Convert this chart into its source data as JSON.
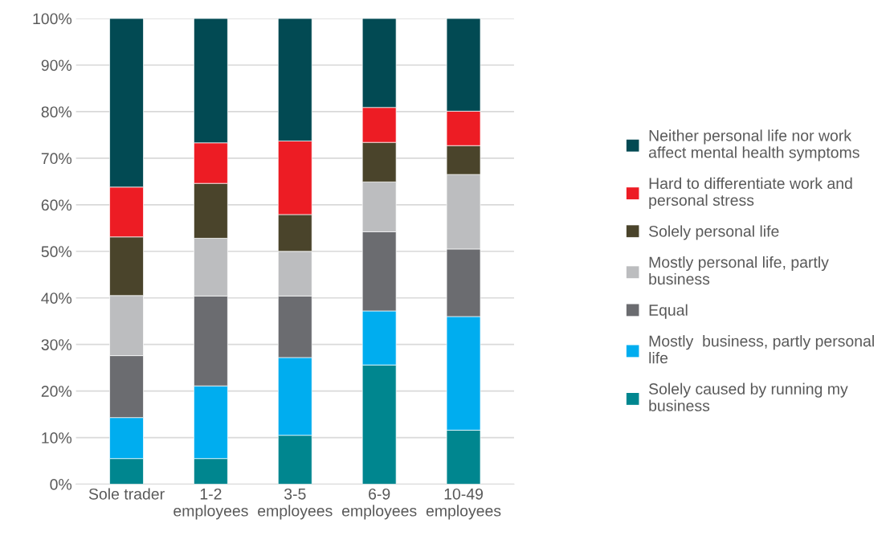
{
  "chart_data": {
    "type": "bar",
    "stacked": true,
    "categories": [
      "Sole trader",
      "1-2\nemployees",
      "3-5\nemployees",
      "6-9\nemployees",
      "10-49\nemployees"
    ],
    "series": [
      {
        "name": "Solely caused by running my\nbusiness",
        "color": "#00868f",
        "values": [
          5.5,
          5.5,
          10.5,
          25.6,
          11.6
        ]
      },
      {
        "name": "Mostly  business, partly personal\nlife",
        "color": "#00adef",
        "values": [
          8.8,
          15.6,
          16.7,
          11.6,
          24.4
        ]
      },
      {
        "name": "Equal",
        "color": "#6b6c70",
        "values": [
          13.3,
          19.3,
          13.2,
          17.0,
          14.5
        ]
      },
      {
        "name": "Mostly personal life, partly\nbusiness",
        "color": "#bcbdbf",
        "values": [
          12.9,
          12.4,
          9.6,
          10.7,
          16.0
        ]
      },
      {
        "name": "Solely personal life",
        "color": "#4a442b",
        "values": [
          12.6,
          11.8,
          7.9,
          8.5,
          6.2
        ]
      },
      {
        "name": "Hard to differentiate work and\npersonal stress",
        "color": "#ed1c24",
        "values": [
          10.7,
          8.7,
          15.8,
          7.5,
          7.4
        ]
      },
      {
        "name": "Neither personal life nor work\naffect mental health symptoms",
        "color": "#024a53",
        "values": [
          36.2,
          26.7,
          26.3,
          19.1,
          19.9
        ]
      }
    ],
    "ylim": [
      0,
      100
    ],
    "yticks": [
      {
        "value": 0,
        "label": "0%"
      },
      {
        "value": 10,
        "label": "10%"
      },
      {
        "value": 20,
        "label": "20%"
      },
      {
        "value": 30,
        "label": "30%"
      },
      {
        "value": 40,
        "label": "40%"
      },
      {
        "value": 50,
        "label": "50%"
      },
      {
        "value": 60,
        "label": "60%"
      },
      {
        "value": 70,
        "label": "70%"
      },
      {
        "value": 80,
        "label": "80%"
      },
      {
        "value": 90,
        "label": "90%"
      },
      {
        "value": 100,
        "label": "100%"
      }
    ],
    "grid": "y",
    "legend": "right"
  }
}
